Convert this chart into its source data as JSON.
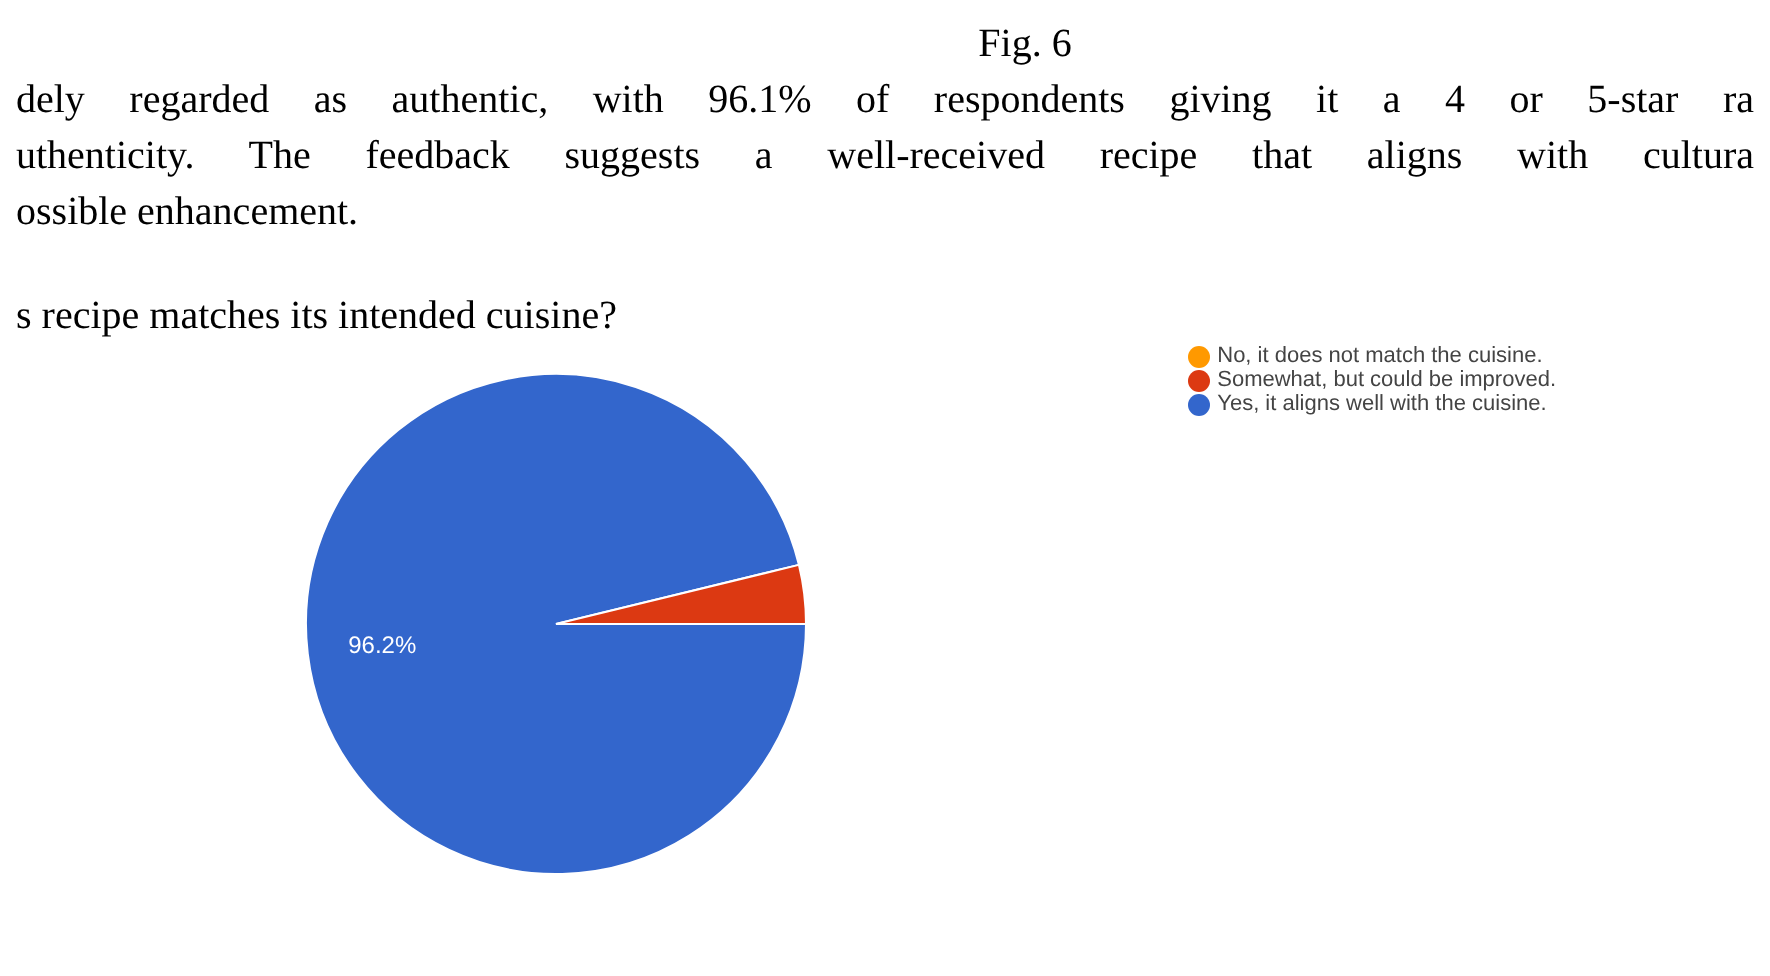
{
  "chart_data": {
    "type": "pie",
    "title": "s recipe matches its intended cuisine?",
    "annotations": [
      "Fig. 6",
      "dely regarded as authentic, with 96.1% of respondents giving it a 4 or 5-star ra",
      "uthenticity. The feedback suggests a well-received recipe that aligns with cultura",
      "ossible enhancement."
    ],
    "categories": [
      "Yes, it aligns well with the cuisine.",
      "Somewhat, but could be improved.",
      "No, it does not match the cuisine."
    ],
    "values": [
      96.2,
      3.8,
      0
    ],
    "colors": [
      "#3366cc",
      "#dc3912",
      "#ff9900"
    ],
    "value_labels": [
      "96.2%",
      null,
      null
    ],
    "legend": "top right"
  }
}
